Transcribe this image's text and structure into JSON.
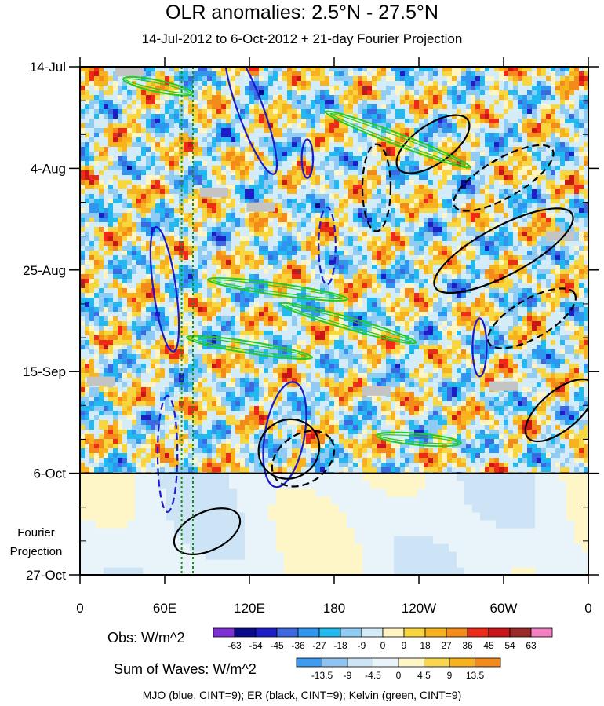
{
  "chart_data": {
    "type": "heatmap",
    "title": "OLR anomalies: 2.5°N - 27.5°N",
    "subtitle": "14-Jul-2012 to 6-Oct-2012 + 21-day Fourier Projection",
    "x_tick_labels": [
      "0",
      "60E",
      "120E",
      "180",
      "120W",
      "60W",
      "0"
    ],
    "x_ticks_deg_east": [
      0,
      60,
      120,
      180,
      240,
      300,
      360
    ],
    "xlim": [
      0,
      360
    ],
    "y_tick_labels": [
      "14-Jul",
      "4-Aug",
      "25-Aug",
      "15-Sep",
      "6-Oct",
      "27-Oct"
    ],
    "y_ticks_day": [
      0,
      21,
      42,
      63,
      84,
      105
    ],
    "ylim_days": [
      0,
      105
    ],
    "observation_end_day": 84,
    "projection_label": [
      "Fourier",
      "Projection"
    ],
    "reference_lines_deg_east": [
      72,
      80
    ],
    "obs_colorbar": {
      "label": "Obs: W/m^2",
      "levels": [
        -63,
        -54,
        -45,
        -36,
        -27,
        -18,
        -9,
        0,
        9,
        18,
        27,
        36,
        45,
        54,
        63
      ],
      "colors": [
        "#7f2fd6",
        "#0a0a8c",
        "#1e1ec8",
        "#3d68e0",
        "#2f96f0",
        "#22b8f0",
        "#8fcbf2",
        "#d4ecf8",
        "#fff4c2",
        "#f8d640",
        "#f7b21e",
        "#f48a1a",
        "#ee2a18",
        "#c9141a",
        "#9a2a2a",
        "#f27fc0"
      ]
    },
    "waves_colorbar": {
      "label": "Sum of Waves: W/m^2",
      "levels": [
        "-13.5",
        "-9",
        "-4.5",
        "0",
        "4.5",
        "9",
        "13.5"
      ],
      "colors": [
        "#3d9cf0",
        "#8fc4f0",
        "#cde4f6",
        "#e8f4fa",
        "#fff6c8",
        "#f8d650",
        "#f7b21e",
        "#f48a1a"
      ]
    },
    "contour_caption": "MJO (blue, CINT=9); ER (black, CINT=9); Kelvin (green, CINT=9)",
    "series": [
      {
        "name": "MJO",
        "color": "#1a1acc",
        "features": [
          {
            "lon": 121,
            "day": 9,
            "lon_r": 9,
            "day_r": 14,
            "tilt_deg": -20,
            "sign": 1
          },
          {
            "lon": 60,
            "day": 46,
            "lon_r": 8,
            "day_r": 13,
            "tilt_deg": -8,
            "sign": 1
          },
          {
            "lon": 145,
            "day": 76,
            "lon_r": 14,
            "day_r": 11,
            "tilt_deg": 10,
            "sign": 1
          },
          {
            "lon": 175,
            "day": 37,
            "lon_r": 6,
            "day_r": 8,
            "tilt_deg": 0,
            "sign": -1
          },
          {
            "lon": 62,
            "day": 80,
            "lon_r": 7,
            "day_r": 12,
            "tilt_deg": 0,
            "sign": -1
          },
          {
            "lon": 283,
            "day": 58,
            "lon_r": 5,
            "day_r": 6,
            "tilt_deg": 0,
            "sign": 1
          },
          {
            "lon": 161,
            "day": 19,
            "lon_r": 4,
            "day_r": 4,
            "tilt_deg": 0,
            "sign": 1
          }
        ]
      },
      {
        "name": "ER",
        "color": "#000000",
        "features": [
          {
            "lon": 300,
            "day": 38,
            "lon_r": 55,
            "day_r": 5,
            "tilt_deg": -28,
            "sign": 1
          },
          {
            "lon": 250,
            "day": 16,
            "lon_r": 30,
            "day_r": 4,
            "tilt_deg": -35,
            "sign": 1
          },
          {
            "lon": 148,
            "day": 79,
            "lon_r": 22,
            "day_r": 6,
            "tilt_deg": -35,
            "sign": 1
          },
          {
            "lon": 158,
            "day": 81,
            "lon_r": 24,
            "day_r": 5,
            "tilt_deg": -35,
            "sign": -1
          },
          {
            "lon": 340,
            "day": 71,
            "lon_r": 30,
            "day_r": 4,
            "tilt_deg": -40,
            "sign": 1
          },
          {
            "lon": 210,
            "day": 25,
            "lon_r": 10,
            "day_r": 9,
            "tilt_deg": 0,
            "sign": -1
          },
          {
            "lon": 90,
            "day": 96,
            "lon_r": 25,
            "day_r": 4,
            "tilt_deg": -25,
            "sign": 1
          },
          {
            "lon": 300,
            "day": 23,
            "lon_r": 40,
            "day_r": 4,
            "tilt_deg": -30,
            "sign": -1
          },
          {
            "lon": 320,
            "day": 52,
            "lon_r": 35,
            "day_r": 4,
            "tilt_deg": -30,
            "sign": -1
          }
        ]
      },
      {
        "name": "Kelvin",
        "color": "#22cc22",
        "features": [
          {
            "lon": 225,
            "day": 15,
            "lon_r": 55,
            "day_r": 1.2,
            "tilt_deg": 21,
            "sign": 1
          },
          {
            "lon": 190,
            "day": 53,
            "lon_r": 50,
            "day_r": 1.2,
            "tilt_deg": 16,
            "sign": 1
          },
          {
            "lon": 240,
            "day": 77,
            "lon_r": 30,
            "day_r": 1.2,
            "tilt_deg": 5,
            "sign": 1
          },
          {
            "lon": 120,
            "day": 58,
            "lon_r": 45,
            "day_r": 1.2,
            "tilt_deg": 9,
            "sign": 1
          },
          {
            "lon": 55,
            "day": 4,
            "lon_r": 25,
            "day_r": 1.2,
            "tilt_deg": 12,
            "sign": 1
          },
          {
            "lon": 140,
            "day": 46,
            "lon_r": 50,
            "day_r": 1.2,
            "tilt_deg": 8,
            "sign": 1
          }
        ]
      }
    ],
    "missing_data_days": [
      1,
      26,
      29,
      65,
      66,
      35,
      67
    ]
  }
}
